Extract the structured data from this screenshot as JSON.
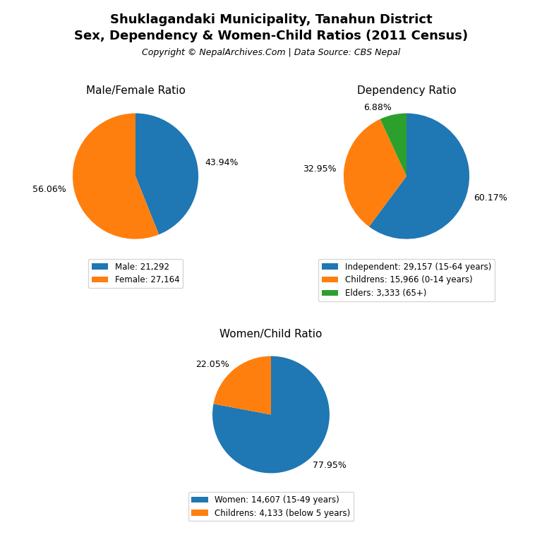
{
  "title": "Shuklagandaki Municipality, Tanahun District",
  "subtitle": "Sex, Dependency & Women-Child Ratios (2011 Census)",
  "annotations": [
    "Copyright © NepalArchives.Com | Data Source: CBS Nepal"
  ],
  "chart_data": [
    {
      "type": "pie",
      "title": "Male/Female Ratio",
      "categories": [
        "Male: 21,292",
        "Female: 27,164"
      ],
      "values": [
        43.94,
        56.06
      ],
      "value_labels": [
        "43.94%",
        "56.06%"
      ],
      "data_labels": true,
      "legend": "upper center"
    },
    {
      "type": "pie",
      "title": "Dependency Ratio",
      "categories": [
        "Independent: 29,157 (15-64 years)",
        "Childrens: 15,966 (0-14 years)",
        "Elders: 3,333 (65+)"
      ],
      "values": [
        60.17,
        32.95,
        6.88
      ],
      "value_labels": [
        "60.17%",
        "32.95%",
        "6.88%"
      ],
      "data_labels": true,
      "legend": "upper center"
    },
    {
      "type": "pie",
      "title": "Women/Child Ratio",
      "categories": [
        "Women: 14,607 (15-49 years)",
        "Childrens: 4,133 (below 5 years)"
      ],
      "values": [
        77.95,
        22.05
      ],
      "value_labels": [
        "77.95%",
        "22.05%"
      ],
      "data_labels": true,
      "legend": "upper center"
    }
  ]
}
